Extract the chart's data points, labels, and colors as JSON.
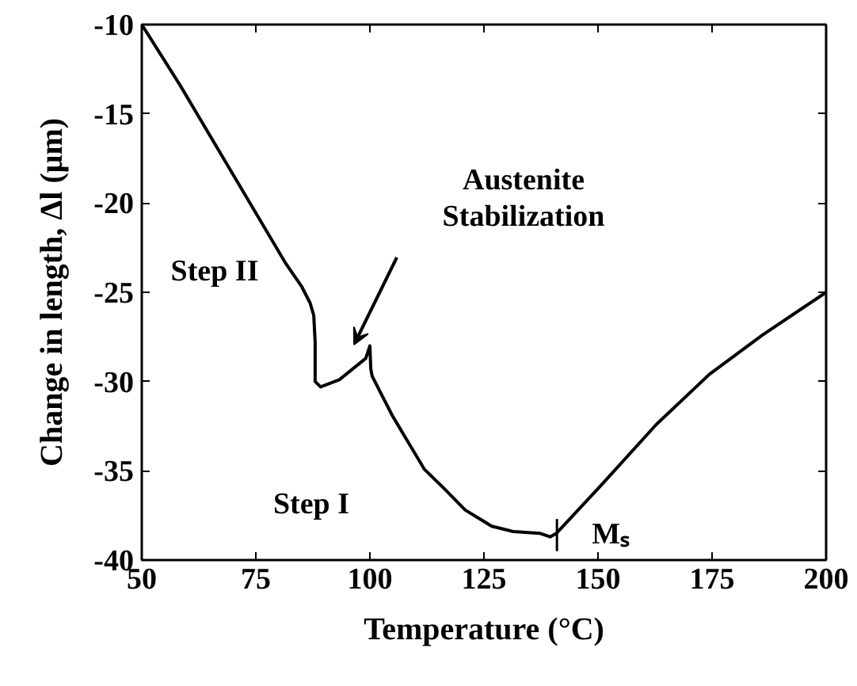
{
  "chart_data": {
    "type": "line",
    "xlabel": "Temperature (°C)",
    "ylabel": "Change in length, Δl (μm)",
    "x": [
      50,
      58.4,
      70,
      81.6,
      85.1,
      86.9,
      87.7,
      88.0,
      88.0,
      89.2,
      93.3,
      99.1,
      100,
      100.2,
      100.5,
      104.9,
      111.9,
      116.3,
      120.9,
      123.5,
      126.7,
      131.4,
      137.2,
      139.5,
      140.9,
      150,
      162.8,
      174.4,
      186,
      200
    ],
    "series": [
      {
        "color": "#000000",
        "values": [
          -10,
          -13.4,
          -18.4,
          -23.4,
          -24.7,
          -25.6,
          -26.3,
          -27.8,
          -30.0,
          -30.3,
          -29.9,
          -28.7,
          -28.0,
          -29.3,
          -29.7,
          -31.9,
          -34.9,
          -36.0,
          -37.2,
          -37.6,
          -38.1,
          -38.4,
          -38.5,
          -38.7,
          -38.5,
          -36.0,
          -32.4,
          -29.6,
          -27.4,
          -25.0
        ]
      }
    ],
    "xlim": [
      50,
      200
    ],
    "ylim": [
      -40,
      -10
    ],
    "xticks": [
      50,
      75,
      100,
      125,
      150,
      175,
      200
    ],
    "yticks": [
      -40,
      -35,
      -30,
      -25,
      -20,
      -15,
      -10
    ],
    "grid": false,
    "marker": "none",
    "line_style": "solid",
    "annotations": [
      "Step II",
      "Step I",
      "Austenite\nStabilization",
      {
        "text": "Mₛ",
        "x": 141,
        "y": -38.6
      }
    ]
  }
}
